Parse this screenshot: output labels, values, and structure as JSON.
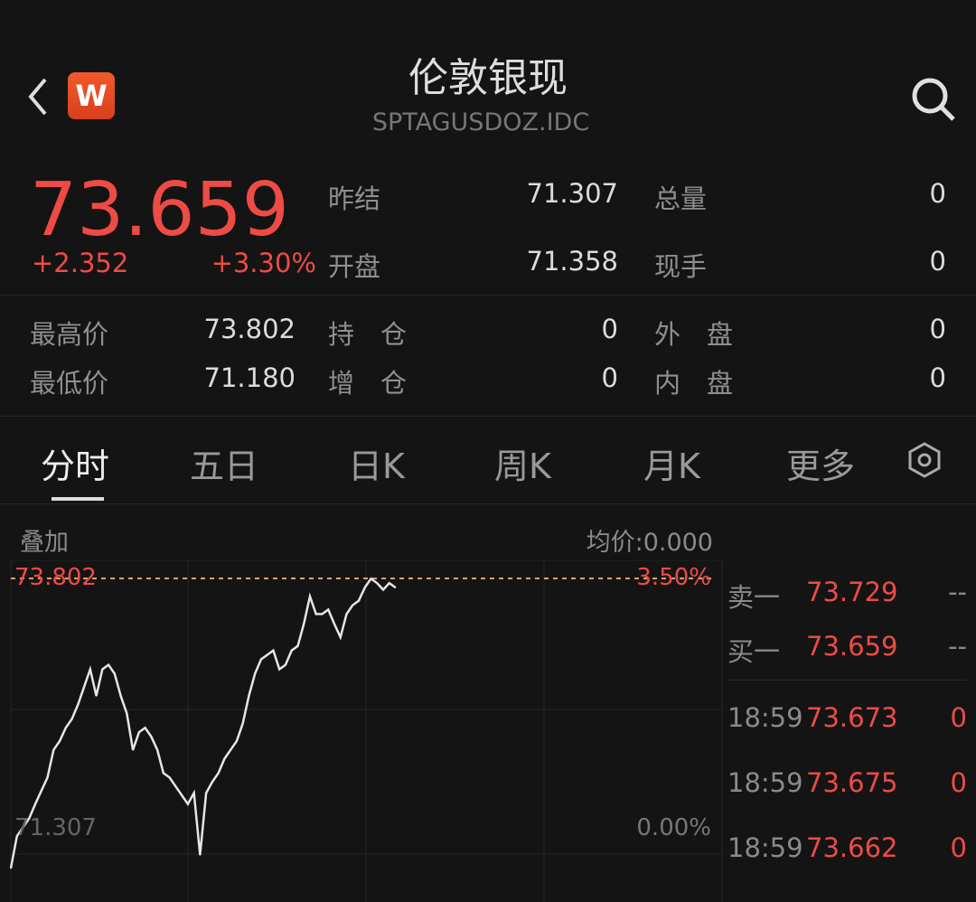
{
  "header": {
    "title": "伦敦银现",
    "code": "SPTAGUSDOZ.IDC",
    "badge": "W"
  },
  "quote": {
    "price": "73.659",
    "change": "+2.352",
    "change_pct": "+3.30%"
  },
  "stats": [
    {
      "label": "昨结",
      "value": "71.307"
    },
    {
      "label": "总量",
      "value": "0"
    },
    {
      "label": "开盘",
      "value": "71.358"
    },
    {
      "label": "现手",
      "value": "0"
    },
    {
      "label": "最高价",
      "value": "73.802"
    },
    {
      "label": "持　仓",
      "value": "0"
    },
    {
      "label": "外　盘",
      "value": "0"
    },
    {
      "label": "最低价",
      "value": "71.180"
    },
    {
      "label": "增　仓",
      "value": "0"
    },
    {
      "label": "内　盘",
      "value": "0"
    }
  ],
  "tabs": [
    {
      "label": "分时"
    },
    {
      "label": "五日"
    },
    {
      "label": "日K"
    },
    {
      "label": "周K"
    },
    {
      "label": "月K"
    },
    {
      "label": "更多"
    }
  ],
  "chart_toolbar": {
    "overlay": "叠加",
    "avg_price": "均价:0.000"
  },
  "order_book": {
    "asks": [
      {
        "label": "卖一",
        "price": "73.729",
        "vol": "--"
      }
    ],
    "bids": [
      {
        "label": "买一",
        "price": "73.659",
        "vol": "--"
      }
    ],
    "trades": [
      {
        "time": "18:59",
        "price": "73.673",
        "vol": "0"
      },
      {
        "time": "18:59",
        "price": "73.675",
        "vol": "0"
      },
      {
        "time": "18:59",
        "price": "73.662",
        "vol": "0"
      }
    ]
  },
  "colors": {
    "up": "#ee4b45",
    "line": "#e6e6e6",
    "ref_line": "#f0a060",
    "bg": "#141414"
  },
  "chart_data": {
    "type": "line",
    "title": "",
    "xlabel": "",
    "ylabel": "",
    "ylim": [
      71.307,
      73.802
    ],
    "y_left_labels": {
      "top": "73.802",
      "bottom": "71.307"
    },
    "y_right_labels": {
      "top": "3.50%",
      "bottom": "0.00%"
    },
    "reference_line": 73.802,
    "grid": true,
    "values": [
      71.18,
      71.47,
      71.55,
      71.63,
      71.76,
      71.88,
      72.0,
      72.25,
      72.33,
      72.45,
      72.53,
      72.66,
      72.82,
      72.98,
      72.74,
      72.98,
      73.02,
      72.94,
      72.74,
      72.58,
      72.25,
      72.41,
      72.45,
      72.37,
      72.25,
      72.04,
      72.0,
      71.92,
      71.84,
      71.76,
      71.86,
      71.3,
      71.86,
      71.96,
      72.04,
      72.17,
      72.25,
      72.33,
      72.49,
      72.74,
      72.94,
      73.07,
      73.11,
      73.15,
      72.98,
      73.02,
      73.15,
      73.19,
      73.39,
      73.64,
      73.48,
      73.48,
      73.52,
      73.39,
      73.27,
      73.48,
      73.56,
      73.6,
      73.72,
      73.8,
      73.76,
      73.7,
      73.76,
      73.72
    ],
    "session_fraction_shown": 0.54
  }
}
